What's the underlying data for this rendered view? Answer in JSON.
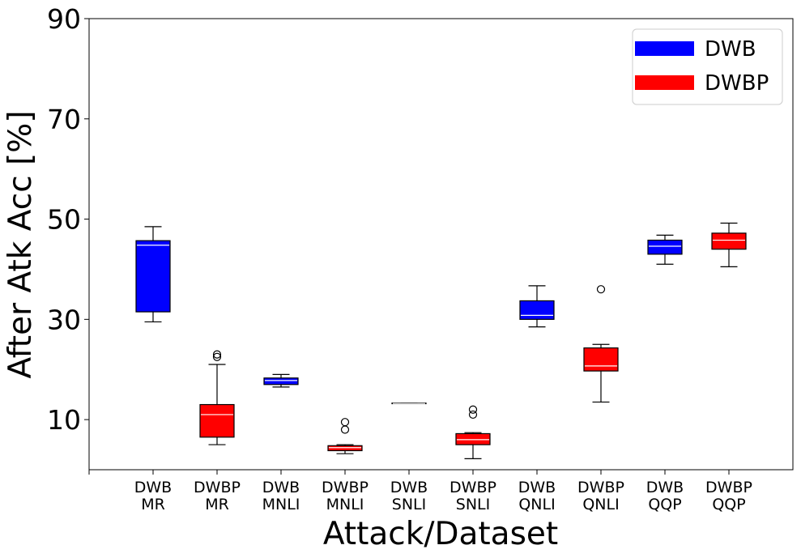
{
  "chart_data": {
    "type": "box",
    "xlabel": "Attack/Dataset",
    "ylabel": "After Atk Acc [%]",
    "ylim": [
      0,
      90
    ],
    "yticks": [
      10,
      30,
      50,
      70,
      90
    ],
    "grid": false,
    "legend": {
      "placement": "top-right",
      "entries": [
        {
          "label": "DWB",
          "color": "#0000ff"
        },
        {
          "label": "DWBP",
          "color": "#ff0000"
        }
      ]
    },
    "categories": [
      {
        "line1": "DWB",
        "line2": "MR",
        "color": "#0000ff",
        "whisker_low": 29.5,
        "q1": 31.5,
        "median": 44.8,
        "q3": 45.7,
        "whisker_high": 48.5,
        "outliers": []
      },
      {
        "line1": "DWBP",
        "line2": "MR",
        "color": "#ff0000",
        "whisker_low": 5.0,
        "q1": 6.5,
        "median": 11.0,
        "q3": 13.0,
        "whisker_high": 21.0,
        "outliers": [
          22.5,
          23.0
        ]
      },
      {
        "line1": "DWB",
        "line2": "MNLI",
        "color": "#0000ff",
        "whisker_low": 16.5,
        "q1": 17.0,
        "median": 17.8,
        "q3": 18.3,
        "whisker_high": 19.0,
        "outliers": []
      },
      {
        "line1": "DWBP",
        "line2": "MNLI",
        "color": "#ff0000",
        "whisker_low": 3.2,
        "q1": 3.8,
        "median": 4.4,
        "q3": 4.8,
        "whisker_high": 5.0,
        "outliers": [
          8.0,
          9.5
        ]
      },
      {
        "line1": "DWB",
        "line2": "SNLI",
        "color": "#0000ff",
        "whisker_low": 13.2,
        "q1": 13.2,
        "median": 13.2,
        "q3": 13.3,
        "whisker_high": 13.3,
        "outliers": []
      },
      {
        "line1": "DWBP",
        "line2": "SNLI",
        "color": "#ff0000",
        "whisker_low": 2.2,
        "q1": 5.0,
        "median": 6.0,
        "q3": 7.2,
        "whisker_high": 7.4,
        "outliers": [
          11.0,
          12.0
        ]
      },
      {
        "line1": "DWB",
        "line2": "QNLI",
        "color": "#0000ff",
        "whisker_low": 28.5,
        "q1": 30.0,
        "median": 30.8,
        "q3": 33.7,
        "whisker_high": 36.7,
        "outliers": []
      },
      {
        "line1": "DWBP",
        "line2": "QNLI",
        "color": "#ff0000",
        "whisker_low": 13.5,
        "q1": 19.7,
        "median": 20.7,
        "q3": 24.3,
        "whisker_high": 25.0,
        "outliers": [
          36.0
        ]
      },
      {
        "line1": "DWB",
        "line2": "QQP",
        "color": "#0000ff",
        "whisker_low": 41.0,
        "q1": 43.0,
        "median": 44.6,
        "q3": 45.8,
        "whisker_high": 46.8,
        "outliers": []
      },
      {
        "line1": "DWBP",
        "line2": "QQP",
        "color": "#ff0000",
        "whisker_low": 40.5,
        "q1": 44.0,
        "median": 45.8,
        "q3": 47.2,
        "whisker_high": 49.2,
        "outliers": []
      }
    ]
  }
}
